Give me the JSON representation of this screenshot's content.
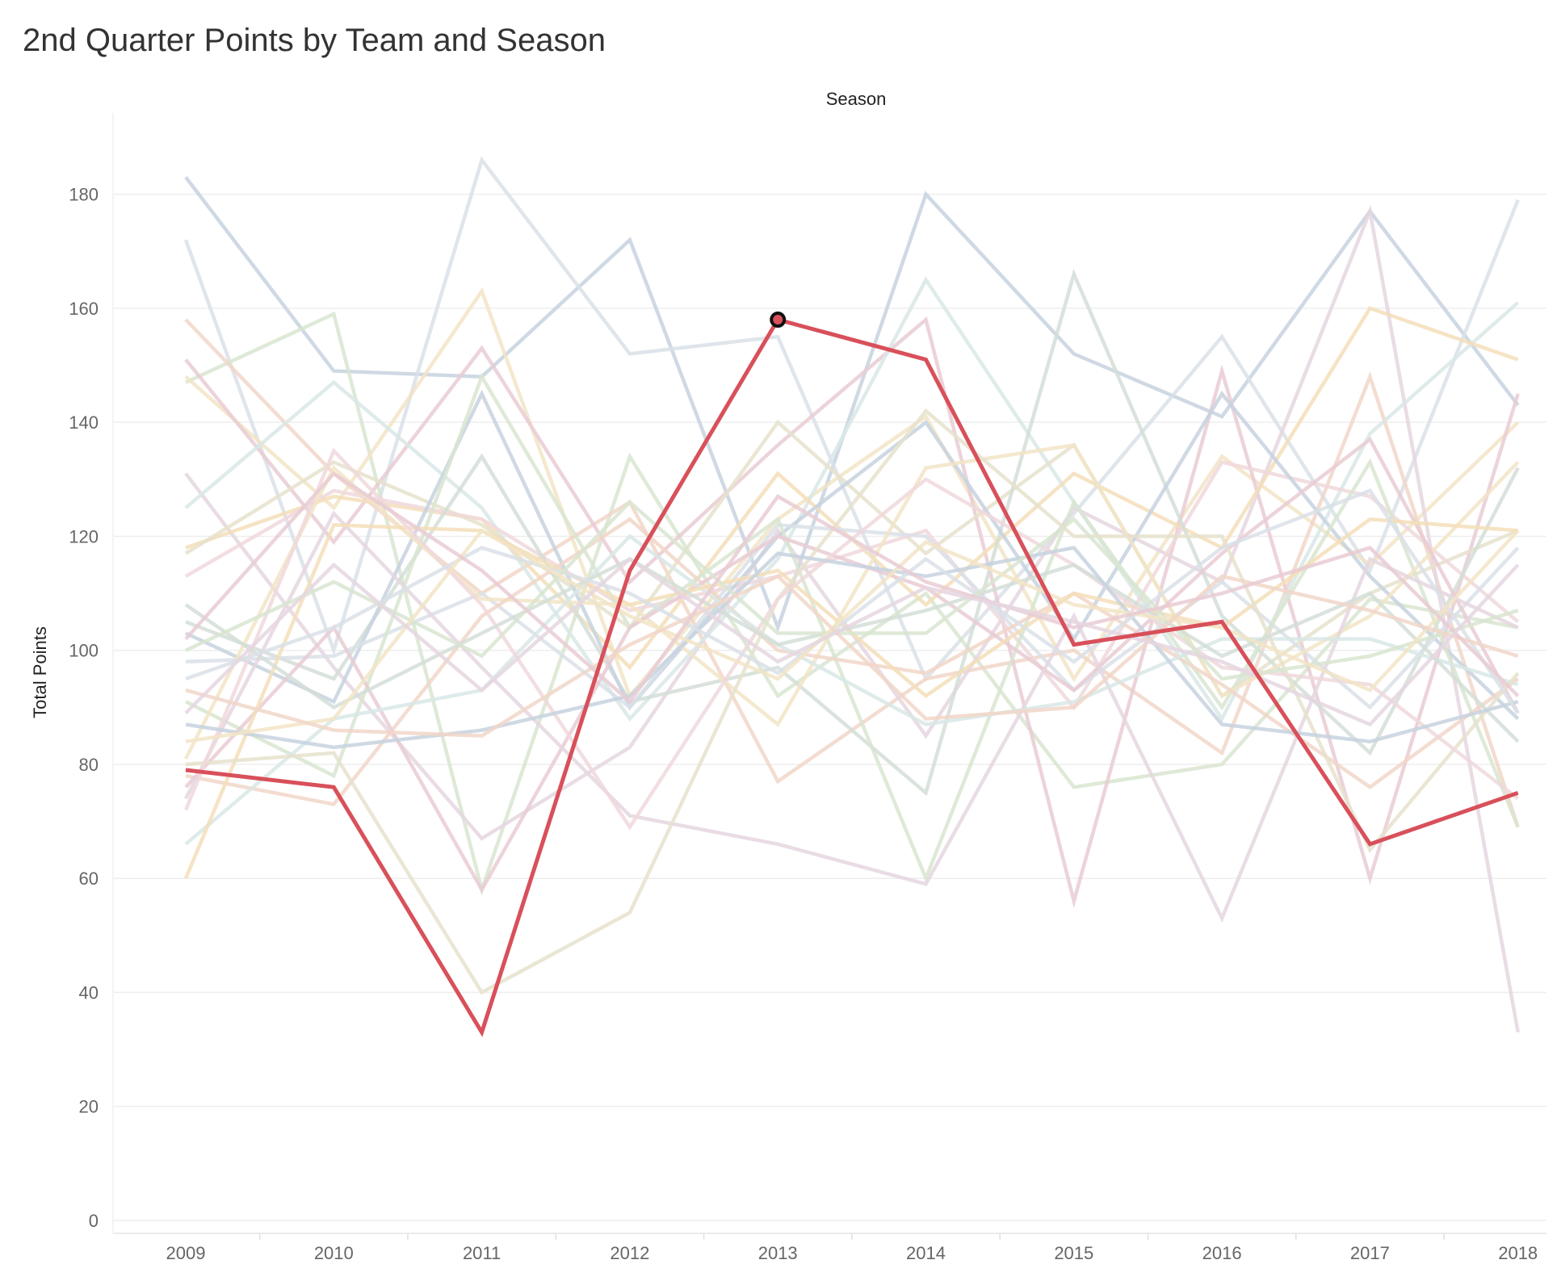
{
  "title": "2nd Quarter Points by Team and Season",
  "column_header": "Season",
  "colors": {
    "highlight": "#D8505A",
    "gridline": "#EEEEEE",
    "axis_text": "#666666",
    "background_palette": [
      "#C7D2DF",
      "#D9E0E8",
      "#D8E5D0",
      "#F2E4C6",
      "#F1D6C8",
      "#E9CBD3",
      "#E5D6E0",
      "#D8E8E6",
      "#F3DEB8",
      "#E6E2CC",
      "#F0D8DC",
      "#D4DED7"
    ]
  },
  "chart_data": {
    "type": "line",
    "title": "2nd Quarter Points by Team and Season",
    "xlabel": "Season",
    "ylabel": "Total Points",
    "x": [
      "2009",
      "2010",
      "2011",
      "2012",
      "2013",
      "2014",
      "2015",
      "2016",
      "2017",
      "2018"
    ],
    "yticks": [
      0,
      20,
      40,
      60,
      80,
      100,
      120,
      140,
      160,
      180
    ],
    "ylim": [
      0,
      195
    ],
    "grid": true,
    "highlighted_series": {
      "values": [
        79,
        76,
        33,
        114,
        158,
        151,
        101,
        105,
        66,
        75
      ],
      "marked_point": {
        "x": "2013",
        "y": 158
      }
    },
    "series": [
      {
        "values": [
          183,
          149,
          148,
          172,
          104,
          180,
          152,
          141,
          177,
          143
        ]
      },
      {
        "values": [
          172,
          100,
          186,
          152,
          155,
          95,
          124,
          155,
          114,
          179
        ]
      },
      {
        "values": [
          147,
          159,
          58,
          134,
          92,
          110,
          76,
          80,
          109,
          104
        ]
      },
      {
        "values": [
          148,
          125,
          163,
          92,
          123,
          141,
          95,
          134,
          115,
          140
        ]
      },
      {
        "values": [
          158,
          131,
          110,
          126,
          77,
          95,
          100,
          82,
          148,
          69
        ]
      },
      {
        "values": [
          151,
          119,
          153,
          112,
          136,
          158,
          56,
          149,
          60,
          145
        ]
      },
      {
        "values": [
          131,
          97,
          67,
          83,
          121,
          85,
          125,
          112,
          177,
          33
        ]
      },
      {
        "values": [
          125,
          147,
          125,
          88,
          116,
          165,
          126,
          88,
          138,
          161
        ]
      },
      {
        "values": [
          118,
          127,
          123,
          97,
          131,
          108,
          131,
          118,
          160,
          151
        ]
      },
      {
        "values": [
          117,
          133,
          122,
          104,
          140,
          117,
          136,
          92,
          110,
          121
        ]
      },
      {
        "values": [
          113,
          128,
          123,
          107,
          113,
          121,
          90,
          133,
          127,
          105
        ]
      },
      {
        "values": [
          105,
          95,
          134,
          91,
          97,
          75,
          166,
          106,
          82,
          132
        ]
      },
      {
        "values": [
          103,
          91,
          145,
          90,
          120,
          140,
          102,
          145,
          113,
          88
        ]
      },
      {
        "values": [
          98,
          99,
          110,
          90,
          122,
          120,
          93,
          112,
          90,
          118
        ]
      },
      {
        "values": [
          91,
          78,
          148,
          104,
          123,
          60,
          126,
          90,
          133,
          69
        ]
      },
      {
        "values": [
          81,
          132,
          109,
          108,
          87,
          132,
          136,
          92,
          106,
          133
        ]
      },
      {
        "values": [
          78,
          73,
          106,
          123,
          100,
          96,
          110,
          94,
          76,
          95
        ]
      },
      {
        "values": [
          76,
          104,
          58,
          104,
          120,
          111,
          93,
          117,
          137,
          89
        ]
      },
      {
        "values": [
          74,
          124,
          97,
          71,
          66,
          59,
          106,
          53,
          116,
          104
        ]
      },
      {
        "values": [
          66,
          88,
          93,
          120,
          101,
          87,
          91,
          102,
          102,
          94
        ]
      },
      {
        "values": [
          60,
          122,
          121,
          108,
          114,
          92,
          110,
          104,
          123,
          121
        ]
      },
      {
        "values": [
          80,
          82,
          40,
          54,
          109,
          142,
          120,
          120,
          65,
          96
        ]
      },
      {
        "values": [
          72,
          135,
          108,
          69,
          109,
          130,
          115,
          97,
          94,
          74
        ]
      },
      {
        "values": [
          108,
          90,
          103,
          116,
          101,
          107,
          115,
          99,
          110,
          84
        ]
      },
      {
        "values": [
          87,
          83,
          86,
          92,
          117,
          113,
          118,
          87,
          84,
          91
        ]
      },
      {
        "values": [
          95,
          104,
          118,
          110,
          96,
          116,
          98,
          118,
          128,
          89
        ]
      },
      {
        "values": [
          100,
          112,
          99,
          126,
          103,
          103,
          123,
          95,
          99,
          107
        ]
      },
      {
        "values": [
          84,
          88,
          121,
          106,
          95,
          119,
          108,
          104,
          93,
          121
        ]
      },
      {
        "values": [
          93,
          86,
          85,
          101,
          113,
          88,
          90,
          113,
          107,
          99
        ]
      },
      {
        "values": [
          102,
          131,
          114,
          91,
          127,
          112,
          104,
          110,
          118,
          92
        ]
      },
      {
        "values": [
          89,
          115,
          93,
          116,
          98,
          111,
          105,
          98,
          87,
          115
        ]
      }
    ]
  }
}
